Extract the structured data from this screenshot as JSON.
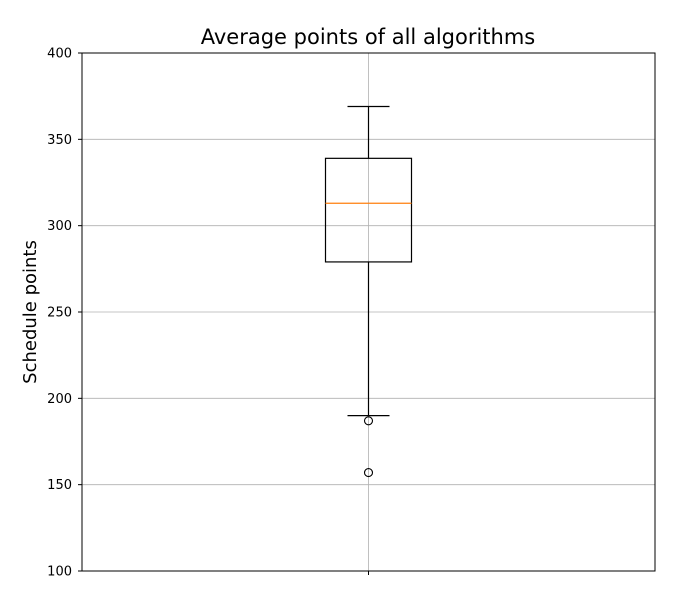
{
  "chart_data": {
    "type": "box",
    "title": "Average points of all algorithms",
    "xlabel": "",
    "ylabel": "Schedule points",
    "ylim": [
      100,
      400
    ],
    "yticks": [
      "100",
      "150",
      "200",
      "250",
      "300",
      "350",
      "400"
    ],
    "xticks": [
      ""
    ],
    "grid": true,
    "legend": "none",
    "colors": {
      "box": "#000000",
      "median": "#ff7f0e",
      "grid": "#b0b0b0",
      "axes": "#000000"
    },
    "series": [
      {
        "whisker_low": 190,
        "q1": 279,
        "median": 313,
        "q3": 339,
        "whisker_high": 369,
        "outliers": [
          187,
          157
        ]
      }
    ]
  }
}
